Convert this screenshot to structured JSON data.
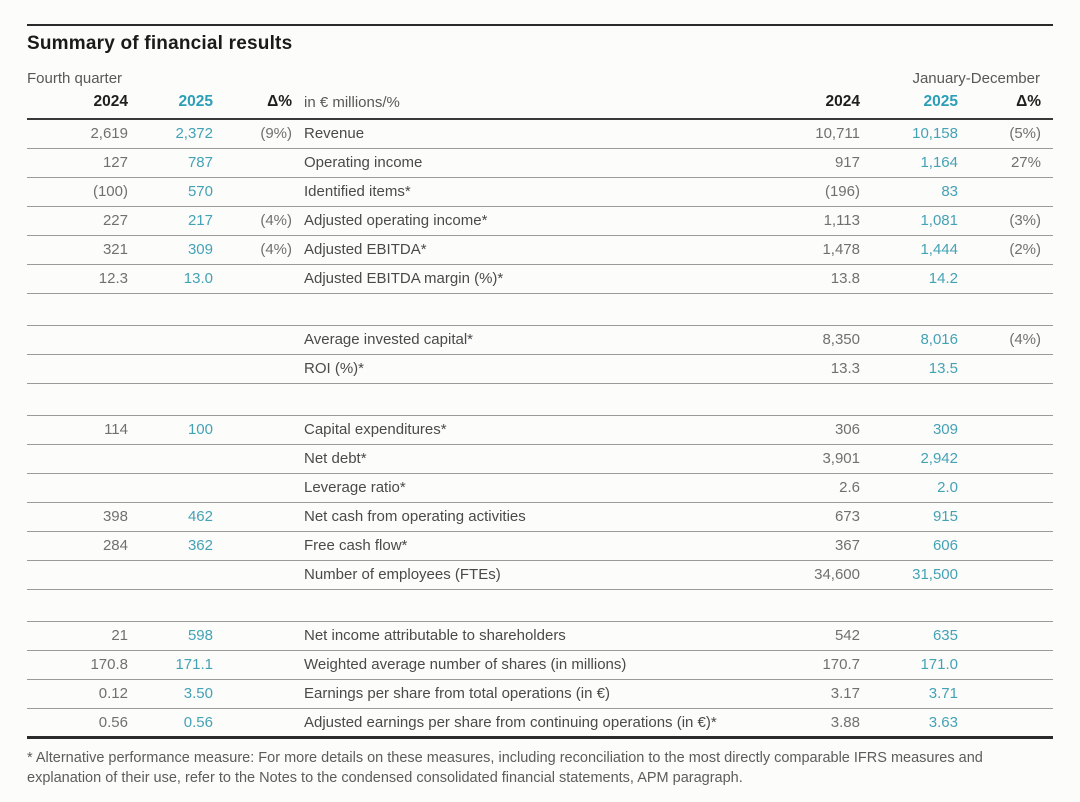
{
  "title": "Summary of financial results",
  "periods": {
    "left": "Fourth quarter",
    "right": "January-December"
  },
  "columns": {
    "year_prev": "2024",
    "year_curr": "2025",
    "delta": "Δ%",
    "unit": "in € millions/%"
  },
  "colors": {
    "accent_header": "#2b9fb6",
    "accent_value": "#44a2b5",
    "value_gray": "#707070",
    "label_gray": "#4a4a4a",
    "rule_gray": "#9a9a9a",
    "rule_dark": "#2a2a2a"
  },
  "rows": [
    {
      "label": "Revenue",
      "q4_2024": "2,619",
      "q4_2025": "2,372",
      "q4_delta": "(9%)",
      "jd_2024": "10,711",
      "jd_2025": "10,158",
      "jd_delta": "(5%)"
    },
    {
      "label": "Operating income",
      "q4_2024": "127",
      "q4_2025": "787",
      "q4_delta": "",
      "jd_2024": "917",
      "jd_2025": "1,164",
      "jd_delta": "27%"
    },
    {
      "label": "Identified items*",
      "q4_2024": "(100)",
      "q4_2025": "570",
      "q4_delta": "",
      "jd_2024": "(196)",
      "jd_2025": "83",
      "jd_delta": ""
    },
    {
      "label": "Adjusted operating income*",
      "q4_2024": "227",
      "q4_2025": "217",
      "q4_delta": "(4%)",
      "jd_2024": "1,113",
      "jd_2025": "1,081",
      "jd_delta": "(3%)"
    },
    {
      "label": "Adjusted EBITDA*",
      "q4_2024": "321",
      "q4_2025": "309",
      "q4_delta": "(4%)",
      "jd_2024": "1,478",
      "jd_2025": "1,444",
      "jd_delta": "(2%)"
    },
    {
      "label": "Adjusted EBITDA margin (%)*",
      "q4_2024": "12.3",
      "q4_2025": "13.0",
      "q4_delta": "",
      "jd_2024": "13.8",
      "jd_2025": "14.2",
      "jd_delta": ""
    },
    {
      "spacer": true
    },
    {
      "label": "Average invested capital*",
      "q4_2024": "",
      "q4_2025": "",
      "q4_delta": "",
      "jd_2024": "8,350",
      "jd_2025": "8,016",
      "jd_delta": "(4%)"
    },
    {
      "label": "ROI (%)*",
      "q4_2024": "",
      "q4_2025": "",
      "q4_delta": "",
      "jd_2024": "13.3",
      "jd_2025": "13.5",
      "jd_delta": ""
    },
    {
      "spacer": true
    },
    {
      "label": "Capital expenditures*",
      "q4_2024": "114",
      "q4_2025": "100",
      "q4_delta": "",
      "jd_2024": "306",
      "jd_2025": "309",
      "jd_delta": ""
    },
    {
      "label": "Net debt*",
      "q4_2024": "",
      "q4_2025": "",
      "q4_delta": "",
      "jd_2024": "3,901",
      "jd_2025": "2,942",
      "jd_delta": ""
    },
    {
      "label": "Leverage ratio*",
      "q4_2024": "",
      "q4_2025": "",
      "q4_delta": "",
      "jd_2024": "2.6",
      "jd_2025": "2.0",
      "jd_delta": ""
    },
    {
      "label": "Net cash from operating activities",
      "q4_2024": "398",
      "q4_2025": "462",
      "q4_delta": "",
      "jd_2024": "673",
      "jd_2025": "915",
      "jd_delta": ""
    },
    {
      "label": "Free cash flow*",
      "q4_2024": "284",
      "q4_2025": "362",
      "q4_delta": "",
      "jd_2024": "367",
      "jd_2025": "606",
      "jd_delta": ""
    },
    {
      "label": "Number of employees (FTEs)",
      "q4_2024": "",
      "q4_2025": "",
      "q4_delta": "",
      "jd_2024": "34,600",
      "jd_2025": "31,500",
      "jd_delta": ""
    },
    {
      "spacer": true
    },
    {
      "label": "Net income attributable to shareholders",
      "q4_2024": "21",
      "q4_2025": "598",
      "q4_delta": "",
      "jd_2024": "542",
      "jd_2025": "635",
      "jd_delta": ""
    },
    {
      "label": "Weighted average number of shares (in millions)",
      "q4_2024": "170.8",
      "q4_2025": "171.1",
      "q4_delta": "",
      "jd_2024": "170.7",
      "jd_2025": "171.0",
      "jd_delta": ""
    },
    {
      "label": "Earnings per share from total operations (in €)",
      "q4_2024": "0.12",
      "q4_2025": "3.50",
      "q4_delta": "",
      "jd_2024": "3.17",
      "jd_2025": "3.71",
      "jd_delta": ""
    },
    {
      "label": "Adjusted earnings per share from continuing operations (in €)*",
      "q4_2024": "0.56",
      "q4_2025": "0.56",
      "q4_delta": "",
      "jd_2024": "3.88",
      "jd_2025": "3.63",
      "jd_delta": ""
    }
  ],
  "footnote": "* Alternative performance measure: For more details on these measures, including reconciliation to the most directly comparable IFRS measures and explanation of their use, refer to the Notes to the condensed consolidated financial statements, APM paragraph."
}
